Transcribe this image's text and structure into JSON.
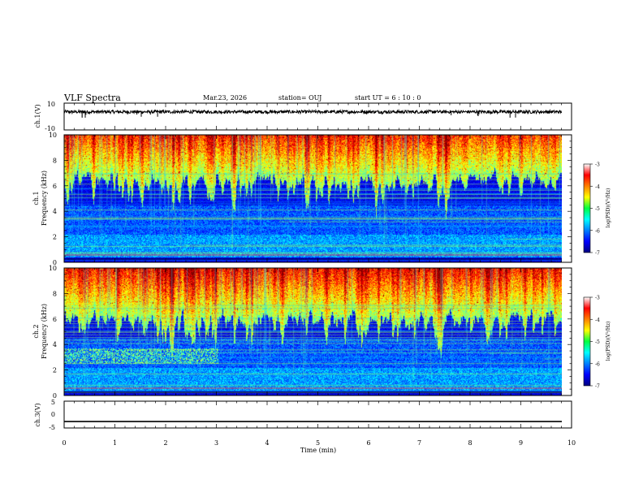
{
  "header": {
    "title": "VLF Spectra",
    "date": "Mar.23, 2026",
    "station": "station= OUJ",
    "start": "start  UT =   6 : 10 : 0"
  },
  "chart_data": [
    {
      "type": "line",
      "name": "ch1-waveform",
      "ylabel": "ch.1(V)",
      "ylim": [
        -10,
        10
      ],
      "yticks": [
        "10",
        "-10"
      ],
      "xlim": [
        0,
        10
      ],
      "baseline": 3.5,
      "description_values": {
        "mean_volts": 3.5,
        "amplitude_volts": 1.2
      }
    },
    {
      "type": "heatmap",
      "name": "ch1-spectrogram",
      "ylabel": "ch.1\nFrequency  (kHz)",
      "ylabel_lines": [
        "ch.1",
        "Frequency  (kHz)"
      ],
      "ylim": [
        0,
        10
      ],
      "yticks": [
        "0",
        "2",
        "4",
        "6",
        "8",
        "10"
      ],
      "xlim": [
        0,
        10
      ],
      "data_end_minute": 9.8,
      "colorbar": {
        "label": "log(PSD)(V²/Hz)",
        "range": [
          -7,
          -3
        ],
        "ticks": [
          "-3",
          "-4",
          "-5",
          "-6",
          "-7"
        ]
      }
    },
    {
      "type": "heatmap",
      "name": "ch2-spectrogram",
      "ylabel": "ch.2\nFrequency  (kHz)",
      "ylabel_lines": [
        "ch.2",
        "Frequency  (kHz)"
      ],
      "ylim": [
        0,
        10
      ],
      "yticks": [
        "0",
        "2",
        "4",
        "6",
        "8",
        "10"
      ],
      "xlim": [
        0,
        10
      ],
      "data_end_minute": 9.8,
      "colorbar": {
        "label": "log(PSD)(V²/Hz)",
        "range": [
          -7,
          -3
        ],
        "ticks": [
          "-3",
          "-4",
          "-5",
          "-6",
          "-7"
        ]
      }
    },
    {
      "type": "line",
      "name": "ch3-waveform",
      "ylabel": "ch.3(V)",
      "ylim": [
        -5,
        5
      ],
      "yticks": [
        "5",
        "0",
        "-5"
      ],
      "xlim": [
        0,
        10
      ],
      "baseline": -2.6
    }
  ],
  "xaxis": {
    "label": "Time  (min)",
    "ticks": [
      "0",
      "1",
      "2",
      "3",
      "4",
      "5",
      "6",
      "7",
      "8",
      "9",
      "10"
    ]
  }
}
